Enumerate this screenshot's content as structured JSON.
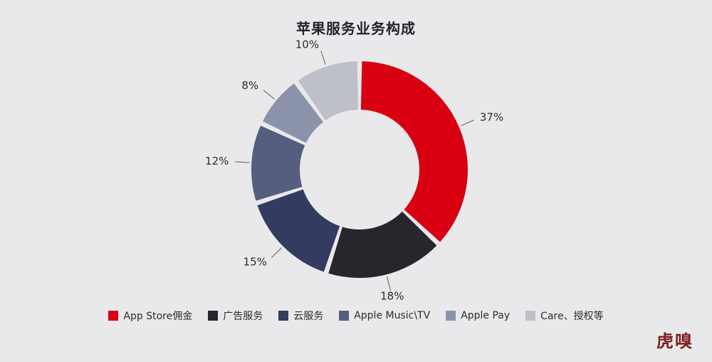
{
  "page": {
    "background": "#e9e9eb"
  },
  "chart_data": {
    "type": "pie",
    "subtype": "donut",
    "title": "苹果服务业务构成",
    "categories": [
      "App Store佣金",
      "广告服务",
      "云服务",
      "Apple Music\\TV",
      "Apple Pay",
      "Care、授权等"
    ],
    "values": [
      37,
      18,
      15,
      12,
      8,
      10
    ],
    "data_labels": [
      "37%",
      "18%",
      "15%",
      "12%",
      "8%",
      "10%"
    ],
    "colors": [
      "#d80011",
      "#26262c",
      "#343b60",
      "#565e80",
      "#8b93ab",
      "#bdc0c8"
    ],
    "start_angle_deg": 0,
    "direction": "clockwise",
    "legend_position": "bottom",
    "grid": false
  },
  "footer": {
    "logo_text": "虎嗅"
  }
}
